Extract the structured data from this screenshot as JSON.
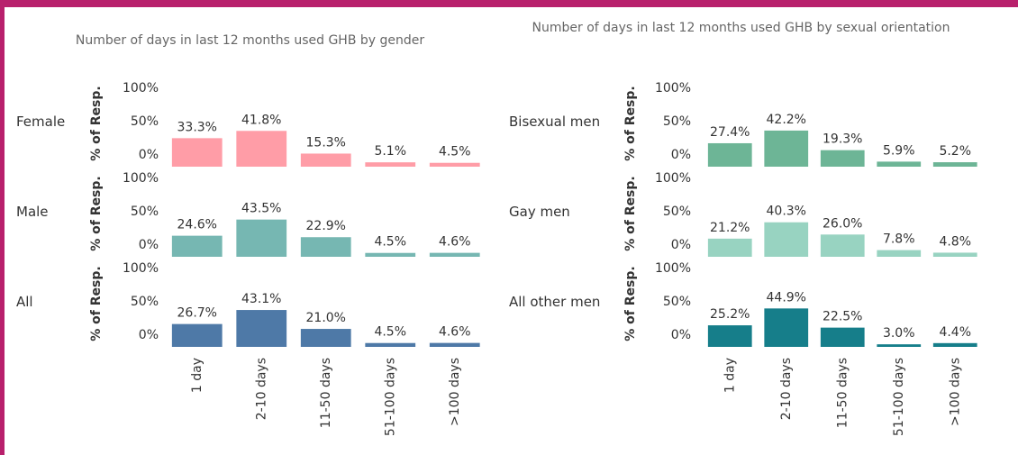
{
  "chart_data": [
    {
      "type": "bar",
      "title": "Number of days in last 12 months used GHB by gender",
      "ylabel": "% of Resp.",
      "categories": [
        "1 day",
        "2-10 days",
        "11-50 days",
        "51-100 days",
        ">100 days"
      ],
      "ylim": [
        0,
        100
      ],
      "yticks": [
        {
          "value": 0,
          "label": "0%"
        },
        {
          "value": 50,
          "label": "50%"
        },
        {
          "value": 100,
          "label": "100%"
        }
      ],
      "series": [
        {
          "name": "Female",
          "color": "#ff9da7",
          "values": [
            33.3,
            41.8,
            15.3,
            5.1,
            4.5
          ],
          "value_labels": [
            "33.3%",
            "41.8%",
            "15.3%",
            "5.1%",
            "4.5%"
          ]
        },
        {
          "name": "Male",
          "color": "#76b7b2",
          "values": [
            24.6,
            43.5,
            22.9,
            4.5,
            4.6
          ],
          "value_labels": [
            "24.6%",
            "43.5%",
            "22.9%",
            "4.5%",
            "4.6%"
          ]
        },
        {
          "name": "All",
          "color": "#4e79a7",
          "values": [
            26.7,
            43.1,
            21.0,
            4.5,
            4.6
          ],
          "value_labels": [
            "26.7%",
            "43.1%",
            "21.0%",
            "4.5%",
            "4.6%"
          ]
        }
      ]
    },
    {
      "type": "bar",
      "title": "Number of days in last 12 months used GHB by sexual orientation",
      "ylabel": "% of Resp.",
      "categories": [
        "1 day",
        "2-10 days",
        "11-50 days",
        "51-100 days",
        ">100 days"
      ],
      "ylim": [
        0,
        100
      ],
      "yticks": [
        {
          "value": 0,
          "label": "0%"
        },
        {
          "value": 50,
          "label": "50%"
        },
        {
          "value": 100,
          "label": "100%"
        }
      ],
      "series": [
        {
          "name": "Bisexual men",
          "color": "#6db596",
          "values": [
            27.4,
            42.2,
            19.3,
            5.9,
            5.2
          ],
          "value_labels": [
            "27.4%",
            "42.2%",
            "19.3%",
            "5.9%",
            "5.2%"
          ]
        },
        {
          "name": "Gay men",
          "color": "#98d3c1",
          "values": [
            21.2,
            40.3,
            26.0,
            7.8,
            4.8
          ],
          "value_labels": [
            "21.2%",
            "40.3%",
            "26.0%",
            "7.8%",
            "4.8%"
          ]
        },
        {
          "name": "All other men",
          "color": "#167e8a",
          "values": [
            25.2,
            44.9,
            22.5,
            3.0,
            4.4
          ],
          "value_labels": [
            "25.2%",
            "44.9%",
            "22.5%",
            "3.0%",
            "4.4%"
          ]
        }
      ]
    }
  ]
}
